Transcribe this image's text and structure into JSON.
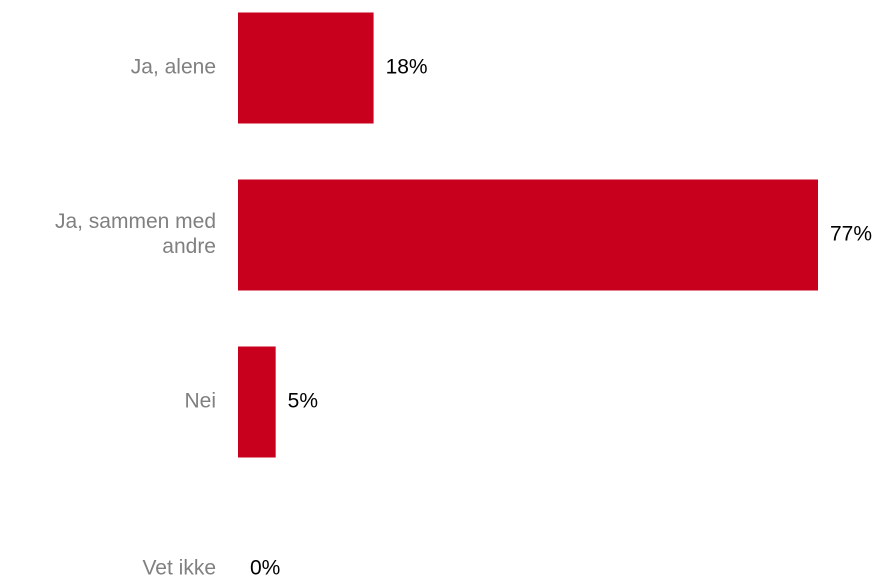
{
  "chart_data": {
    "type": "bar",
    "orientation": "horizontal",
    "categories": [
      [
        "Ja, alene"
      ],
      [
        "Ja, sammen med",
        "andre"
      ],
      [
        "Nei"
      ],
      [
        "Vet ikke"
      ]
    ],
    "values": [
      18,
      77,
      5,
      0
    ],
    "value_labels": [
      "18%",
      "77%",
      "5%",
      "0%"
    ],
    "xlim": [
      0,
      77
    ],
    "grid": false,
    "legend": "none",
    "colors": {
      "bar": "#C8001E",
      "category_text": "#808080",
      "value_text": "#000000"
    }
  }
}
